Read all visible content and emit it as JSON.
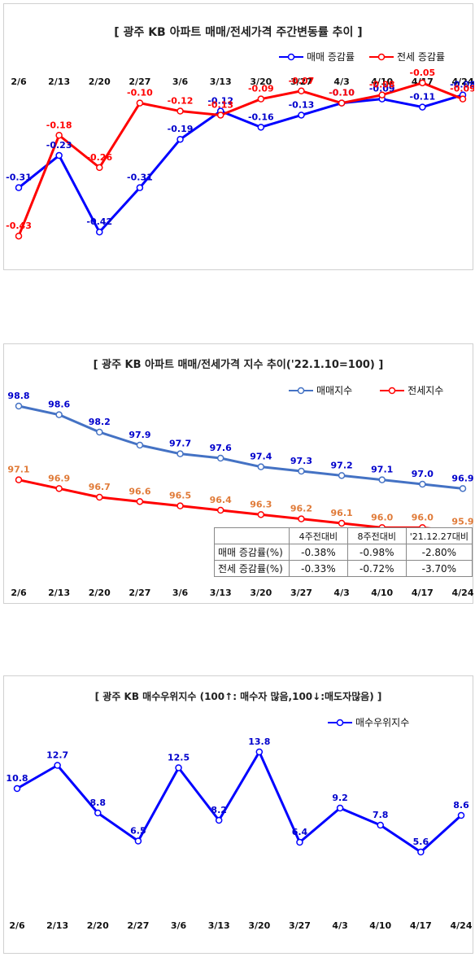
{
  "charts": [
    {
      "title": "[ 광주  KB 아파트 매매/전세가격 주간변동률 추이 ]",
      "legend": [
        {
          "label": "매매 증감률"
        },
        {
          "label": "전세 증감률"
        }
      ]
    },
    {
      "title": "[ 광주  KB 아파트 매매/전세가격 지수 추이('22.1.10=100) ]",
      "legend": [
        {
          "label": "매매지수"
        },
        {
          "label": "전세지수"
        }
      ],
      "table": {
        "headers": [
          "",
          "4주전대비",
          "8주전대비",
          "'21.12.27대비"
        ],
        "rows": [
          [
            "매매 증감률(%)",
            "-0.38%",
            "-0.98%",
            "-2.80%"
          ],
          [
            "전세 증감률(%)",
            "-0.33%",
            "-0.72%",
            "-3.70%"
          ]
        ]
      }
    },
    {
      "title": "[ 광주 KB 매수우위지수 (100↑: 매수자 많음,100↓:매도자많음) ]",
      "legend": [
        {
          "label": "매수우위지수"
        }
      ]
    }
  ],
  "chart_data": [
    {
      "type": "line",
      "title": "[ 광주  KB 아파트 매매/전세가격 주간변동률 추이 ]",
      "categories": [
        "2/6",
        "2/13",
        "2/20",
        "2/27",
        "3/6",
        "3/13",
        "3/20",
        "3/27",
        "4/3",
        "4/10",
        "4/17",
        "4/24"
      ],
      "series": [
        {
          "name": "매매 증감률",
          "color": "#0000ff",
          "label_color": "#0000cc",
          "values": [
            -0.31,
            -0.23,
            -0.42,
            -0.31,
            -0.19,
            -0.12,
            -0.16,
            -0.13,
            -0.1,
            -0.09,
            -0.11,
            -0.08
          ]
        },
        {
          "name": "전세 증감률",
          "color": "#ff0000",
          "label_color": "#ff0000",
          "values": [
            -0.43,
            -0.18,
            -0.26,
            -0.1,
            -0.12,
            -0.13,
            -0.09,
            -0.07,
            -0.1,
            -0.08,
            -0.05,
            -0.09
          ]
        }
      ],
      "ylim": [
        -0.45,
        -0.02
      ],
      "legend_position": "top-right",
      "grid": false
    },
    {
      "type": "line",
      "title": "[ 광주  KB 아파트 매매/전세가격 지수 추이('22.1.10=100) ]",
      "categories": [
        "2/6",
        "2/13",
        "2/20",
        "2/27",
        "3/6",
        "3/13",
        "3/20",
        "3/27",
        "4/3",
        "4/10",
        "4/17",
        "4/24"
      ],
      "series": [
        {
          "name": "매매지수",
          "color": "#4472c4",
          "label_color": "#0000cc",
          "values": [
            98.8,
            98.6,
            98.2,
            97.9,
            97.7,
            97.6,
            97.4,
            97.3,
            97.2,
            97.1,
            97.0,
            96.9
          ]
        },
        {
          "name": "전세지수",
          "color": "#ff0000",
          "label_color": "#e07b39",
          "values": [
            97.1,
            96.9,
            96.7,
            96.6,
            96.5,
            96.4,
            96.3,
            96.2,
            96.1,
            96.0,
            96.0,
            95.9
          ]
        }
      ],
      "ylim": [
        94.6,
        99.1
      ],
      "legend_position": "top-right",
      "grid": false
    },
    {
      "type": "line",
      "title": "[ 광주 KB 매수우위지수 (100↑: 매수자 많음,100↓:매도자많음) ]",
      "categories": [
        "2/6",
        "2/13",
        "2/20",
        "2/27",
        "3/6",
        "3/13",
        "3/20",
        "3/27",
        "4/3",
        "4/10",
        "4/17",
        "4/24"
      ],
      "series": [
        {
          "name": "매수우위지수",
          "color": "#0000ff",
          "label_color": "#0000cc",
          "values": [
            10.8,
            12.7,
            8.8,
            6.5,
            12.5,
            8.2,
            13.8,
            6.4,
            9.2,
            7.8,
            5.6,
            8.6
          ]
        }
      ],
      "ylim": [
        0,
        16
      ],
      "legend_position": "top-right",
      "grid": false
    }
  ]
}
